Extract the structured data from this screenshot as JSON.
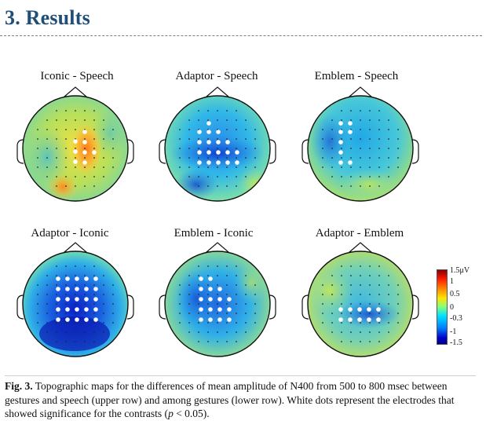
{
  "heading": "3. Results",
  "maps": [
    {
      "title": "Iconic - Speech",
      "pattern": "iconic-speech",
      "sig": [
        [
          108,
          168
        ],
        [
          96,
          180
        ],
        [
          108,
          181
        ],
        [
          96,
          193
        ],
        [
          108,
          194
        ],
        [
          96,
          206
        ],
        [
          108,
          207
        ],
        [
          120,
          194
        ]
      ]
    },
    {
      "title": "Adaptor - Speech",
      "pattern": "adaptor-speech",
      "sig": [
        [
          266,
          157
        ],
        [
          254,
          168
        ],
        [
          266,
          168
        ],
        [
          278,
          168
        ],
        [
          254,
          181
        ],
        [
          266,
          181
        ],
        [
          278,
          181
        ],
        [
          290,
          181
        ],
        [
          254,
          194
        ],
        [
          266,
          194
        ],
        [
          278,
          194
        ],
        [
          290,
          194
        ],
        [
          302,
          194
        ],
        [
          254,
          207
        ],
        [
          266,
          207
        ],
        [
          278,
          207
        ],
        [
          290,
          207
        ],
        [
          302,
          207
        ]
      ]
    },
    {
      "title": "Emblem - Speech",
      "pattern": "emblem-speech",
      "sig": [
        [
          434,
          157
        ],
        [
          446,
          157
        ],
        [
          434,
          168
        ],
        [
          446,
          168
        ],
        [
          434,
          181
        ],
        [
          434,
          194
        ],
        [
          434,
          207
        ],
        [
          446,
          207
        ]
      ]
    },
    {
      "title": "Adaptor - Iconic",
      "pattern": "adaptor-iconic",
      "sig": [
        [
          74,
          355
        ],
        [
          86,
          355
        ],
        [
          98,
          355
        ],
        [
          110,
          355
        ],
        [
          122,
          355
        ],
        [
          74,
          368
        ],
        [
          86,
          368
        ],
        [
          98,
          368
        ],
        [
          110,
          368
        ],
        [
          122,
          368
        ],
        [
          74,
          381
        ],
        [
          86,
          381
        ],
        [
          98,
          381
        ],
        [
          110,
          381
        ],
        [
          122,
          381
        ],
        [
          74,
          394
        ],
        [
          86,
          394
        ],
        [
          98,
          394
        ],
        [
          110,
          394
        ],
        [
          122,
          394
        ],
        [
          74,
          407
        ],
        [
          86,
          407
        ],
        [
          98,
          407
        ],
        [
          110,
          407
        ],
        [
          122,
          407
        ]
      ]
    },
    {
      "title": "Emblem - Iconic",
      "pattern": "emblem-iconic",
      "sig": [
        [
          256,
          355
        ],
        [
          268,
          355
        ],
        [
          256,
          368
        ],
        [
          268,
          368
        ],
        [
          280,
          368
        ],
        [
          256,
          381
        ],
        [
          268,
          381
        ],
        [
          280,
          381
        ],
        [
          292,
          381
        ],
        [
          256,
          394
        ],
        [
          268,
          394
        ],
        [
          280,
          394
        ],
        [
          292,
          394
        ],
        [
          256,
          407
        ],
        [
          268,
          407
        ],
        [
          280,
          407
        ],
        [
          292,
          407
        ]
      ]
    },
    {
      "title": "Adaptor - Emblem",
      "pattern": "adaptor-emblem",
      "sig": [
        [
          434,
          394
        ],
        [
          446,
          394
        ],
        [
          458,
          394
        ],
        [
          470,
          394
        ],
        [
          482,
          394
        ],
        [
          434,
          407
        ],
        [
          446,
          407
        ],
        [
          458,
          407
        ],
        [
          470,
          407
        ],
        [
          482,
          407
        ]
      ]
    }
  ],
  "scale": {
    "labels": [
      "1.5μV",
      "1",
      "0.5",
      "0",
      "-0.3",
      "-1",
      "-1.5"
    ]
  },
  "caption": {
    "label": "Fig. 3.",
    "text": " Topographic maps for the differences of mean amplitude of N400 from 500 to 800 msec between gestures and speech (upper row) and among gestures (lower row). White dots represent the electrodes that showed significance for the contrasts (",
    "p": "p",
    "tail": " < 0.05)."
  }
}
